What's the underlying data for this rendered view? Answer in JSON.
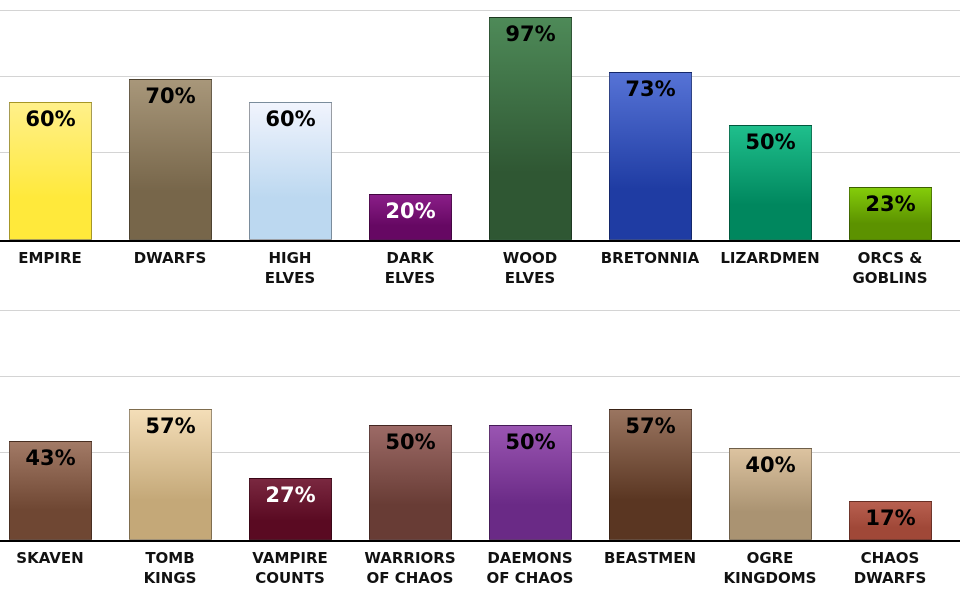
{
  "chart_data": [
    {
      "type": "bar",
      "title": "",
      "xlabel": "",
      "ylabel": "",
      "ylim": [
        0,
        100
      ],
      "grid": true,
      "categories": [
        "EMPIRE",
        "DWARFS",
        "HIGH ELVES",
        "DARK ELVES",
        "WOOD ELVES",
        "BRETONNIA",
        "LIZARDMEN",
        "ORCS & GOBLINS"
      ],
      "values": [
        60,
        70,
        60,
        20,
        97,
        73,
        50,
        23
      ],
      "labels": [
        "60%",
        "70%",
        "60%",
        "20%",
        "97%",
        "73%",
        "50%",
        "23%"
      ],
      "colors": [
        [
          "#fff08a",
          "#ffe93b"
        ],
        [
          "#a8977a",
          "#77664a"
        ],
        [
          "#f1f4fd",
          "#bcd8f0"
        ],
        [
          "#8a1e88",
          "#660863"
        ],
        [
          "#4e8a58",
          "#2f5733"
        ],
        [
          "#5673d6",
          "#1f3ca3"
        ],
        [
          "#1fbf8c",
          "#00875e"
        ],
        [
          "#84cc0a",
          "#5c9200"
        ]
      ],
      "light_text": [
        false,
        false,
        false,
        true,
        false,
        false,
        false,
        false
      ]
    },
    {
      "type": "bar",
      "title": "",
      "xlabel": "",
      "ylabel": "",
      "ylim": [
        0,
        100
      ],
      "grid": true,
      "categories": [
        "SKAVEN",
        "TOMB KINGS",
        "VAMPIRE COUNTS",
        "WARRIORS OF CHAOS",
        "DAEMONS OF CHAOS",
        "BEASTMEN",
        "OGRE KINGDOMS",
        "CHAOS DWARFS"
      ],
      "values": [
        43,
        57,
        27,
        50,
        50,
        57,
        40,
        17
      ],
      "labels": [
        "43%",
        "57%",
        "27%",
        "50%",
        "50%",
        "57%",
        "40%",
        "17%"
      ],
      "colors": [
        [
          "#a27a66",
          "#6f4733"
        ],
        [
          "#f4deb8",
          "#c4a878"
        ],
        [
          "#7a2840",
          "#5a0a22"
        ],
        [
          "#9c6a66",
          "#683c35"
        ],
        [
          "#9a55b2",
          "#6a2a86"
        ],
        [
          "#9a7560",
          "#5a3622"
        ],
        [
          "#dcc3a0",
          "#aa9372"
        ],
        [
          "#b86050",
          "#a04838"
        ]
      ],
      "light_text": [
        false,
        false,
        true,
        false,
        false,
        false,
        false,
        false
      ]
    }
  ],
  "top": {
    "labels": [
      [
        "EMPIRE",
        ""
      ],
      [
        "DWARFS",
        ""
      ],
      [
        "HIGH",
        "ELVES"
      ],
      [
        "DARK",
        "ELVES"
      ],
      [
        "WOOD",
        "ELVES"
      ],
      [
        "BRETONNIA",
        ""
      ],
      [
        "LIZARDMEN",
        ""
      ],
      [
        "ORCS &",
        "GOBLINS"
      ]
    ]
  },
  "bottom": {
    "labels": [
      [
        "SKAVEN",
        ""
      ],
      [
        "TOMB",
        "KINGS"
      ],
      [
        "VAMPIRE",
        "COUNTS"
      ],
      [
        "WARRIORS",
        "OF CHAOS"
      ],
      [
        "DAEMONS",
        "OF CHAOS"
      ],
      [
        "BEASTMEN",
        ""
      ],
      [
        "OGRE",
        "KINGDOMS"
      ],
      [
        "CHAOS",
        "DWARFS"
      ]
    ]
  }
}
